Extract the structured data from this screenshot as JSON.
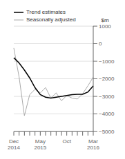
{
  "chart_data": {
    "type": "line",
    "ylabel": "$m",
    "categories": [
      "Dec\n2014",
      null,
      null,
      null,
      null,
      "May\n2015",
      null,
      null,
      null,
      null,
      "Oct",
      null,
      null,
      null,
      null,
      "Mar\n2016"
    ],
    "series": [
      {
        "name": "Trend estimates",
        "color": "#000000",
        "values": [
          -800,
          -1100,
          -1500,
          -1950,
          -2500,
          -2900,
          -3050,
          -3100,
          -3050,
          -3000,
          -2950,
          -2900,
          -2880,
          -2880,
          -2750,
          -2400
        ]
      },
      {
        "name": "Seasonally adjusted",
        "color": "#aaaaaa",
        "values": [
          -250,
          -1900,
          -4100,
          -2900,
          -2600,
          -2800,
          -2500,
          -3100,
          -2800,
          -3250,
          -2950,
          -3100,
          -3150,
          -2850,
          -2400,
          -1900
        ]
      }
    ],
    "ylim": [
      -5000,
      1000
    ],
    "yticks": [
      1000,
      0,
      {
        "value": -1000,
        "label": "−1000"
      },
      {
        "value": -2000,
        "label": "−2000"
      },
      {
        "value": -3000,
        "label": "−3000"
      },
      {
        "value": -4000,
        "label": "−4000"
      },
      {
        "value": -5000,
        "label": "−5000"
      }
    ],
    "grid": true,
    "legend": "upper left"
  }
}
